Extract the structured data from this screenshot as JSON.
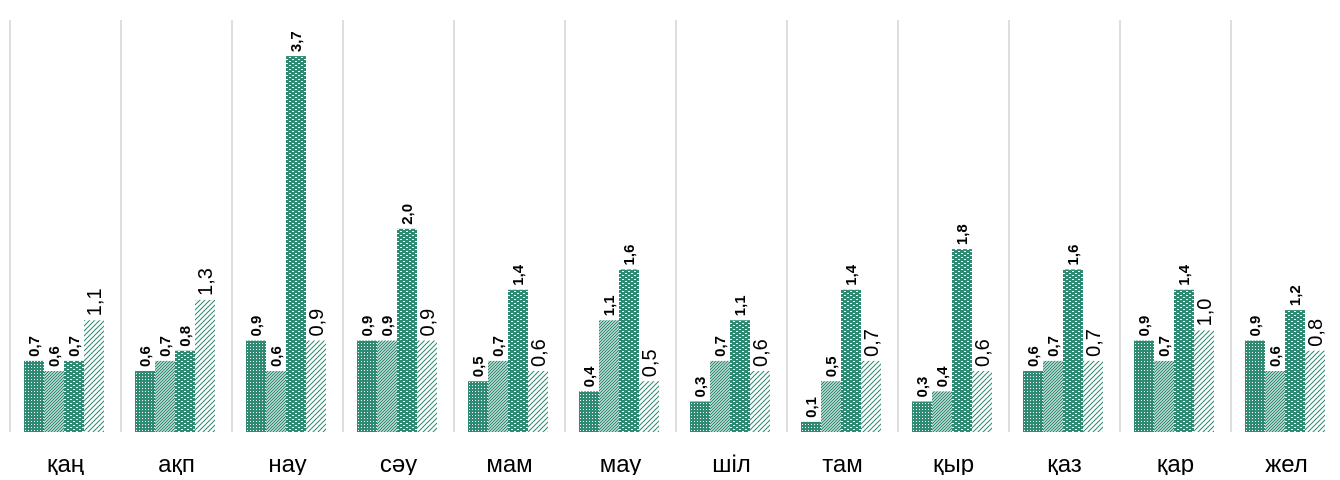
{
  "chart_data": {
    "type": "bar",
    "title": "",
    "xlabel": "",
    "ylabel": "",
    "ylim": [
      0,
      4.0
    ],
    "grid": false,
    "legend": "none",
    "categories": [
      "қаң",
      "ақп",
      "нау",
      "сәу",
      "мам",
      "мау",
      "шіл",
      "там",
      "қыр",
      "қаз",
      "қар",
      "жел"
    ],
    "series": [
      {
        "values": [
          0.7,
          0.6,
          0.9,
          0.9,
          0.5,
          0.4,
          0.3,
          0.1,
          0.3,
          0.6,
          0.9,
          0.9
        ],
        "labels": [
          "0,7",
          "0,6",
          "0,9",
          "0,9",
          "0,5",
          "0,4",
          "0,3",
          "0,1",
          "0,3",
          "0,6",
          "0,9",
          "0,9"
        ],
        "pattern": "dots",
        "label_style": "bold"
      },
      {
        "values": [
          0.6,
          0.7,
          0.6,
          0.9,
          0.7,
          1.1,
          0.7,
          0.5,
          0.4,
          0.7,
          0.7,
          0.6
        ],
        "labels": [
          "0,6",
          "0,7",
          "0,6",
          "0,9",
          "0,7",
          "1,1",
          "0,7",
          "0,5",
          "0,4",
          "0,7",
          "0,7",
          "0,6"
        ],
        "pattern": "dense-hatch",
        "label_style": "bold"
      },
      {
        "values": [
          0.7,
          0.8,
          3.7,
          2.0,
          1.4,
          1.6,
          1.1,
          1.4,
          1.8,
          1.6,
          1.4,
          1.2
        ],
        "labels": [
          "0,7",
          "0,8",
          "3,7",
          "2,0",
          "1,4",
          "1,6",
          "1,1",
          "1,4",
          "1,8",
          "1,6",
          "1,4",
          "1,2"
        ],
        "pattern": "bricks",
        "label_style": "bold"
      },
      {
        "values": [
          1.1,
          1.3,
          0.9,
          0.9,
          0.6,
          0.5,
          0.6,
          0.7,
          0.6,
          0.7,
          1.0,
          0.8
        ],
        "labels": [
          "1,1",
          "1,3",
          "0,9",
          "0,9",
          "0,6",
          "0,5",
          "0,6",
          "0,7",
          "0,6",
          "0,7",
          "1,0",
          "0,8"
        ],
        "pattern": "light-hatch",
        "label_style": "normal"
      }
    ],
    "colors": {
      "bar": "#2e8a72",
      "divider": "#c8c8c8",
      "text": "#000000"
    }
  }
}
